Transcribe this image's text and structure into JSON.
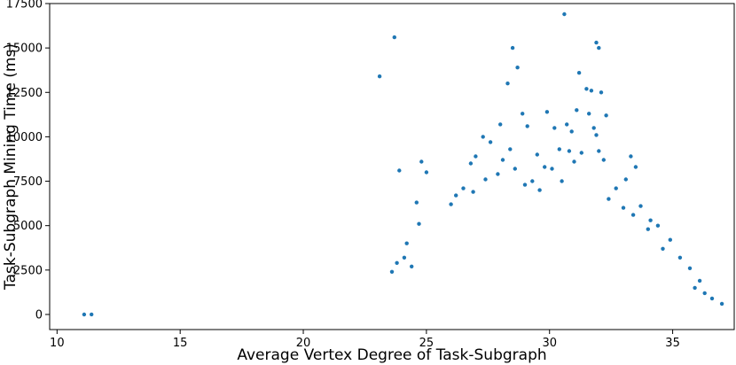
{
  "chart_data": {
    "type": "scatter",
    "title": "",
    "xlabel": "Average Vertex Degree of Task-Subgraph",
    "ylabel": "Task-Subgraph Mining Time (ms)",
    "xlim": [
      9.7,
      37.5
    ],
    "ylim": [
      -850,
      17500
    ],
    "x_ticks": [
      10,
      15,
      20,
      25,
      30,
      35
    ],
    "y_ticks": [
      0,
      2500,
      5000,
      7500,
      10000,
      12500,
      15000,
      17500
    ],
    "grid": false,
    "legend": "none",
    "point_color": "#1f77b4",
    "series": [
      {
        "name": "",
        "points": [
          [
            11.1,
            0
          ],
          [
            11.4,
            5
          ],
          [
            23.1,
            13400
          ],
          [
            23.7,
            15600
          ],
          [
            23.9,
            8100
          ],
          [
            24.8,
            8600
          ],
          [
            25.0,
            8000
          ],
          [
            24.6,
            6300
          ],
          [
            24.7,
            5100
          ],
          [
            24.2,
            4000
          ],
          [
            23.8,
            2900
          ],
          [
            23.6,
            2400
          ],
          [
            24.1,
            3200
          ],
          [
            24.4,
            2700
          ],
          [
            27.3,
            10000
          ],
          [
            27.6,
            9700
          ],
          [
            28.0,
            10700
          ],
          [
            27.0,
            8900
          ],
          [
            26.8,
            8500
          ],
          [
            26.5,
            7100
          ],
          [
            26.2,
            6700
          ],
          [
            26.0,
            6200
          ],
          [
            28.3,
            13000
          ],
          [
            28.5,
            15000
          ],
          [
            28.7,
            13900
          ],
          [
            28.9,
            11300
          ],
          [
            28.4,
            9300
          ],
          [
            28.1,
            8700
          ],
          [
            29.1,
            10600
          ],
          [
            29.5,
            9000
          ],
          [
            29.8,
            8300
          ],
          [
            29.3,
            7500
          ],
          [
            29.9,
            11400
          ],
          [
            30.2,
            10500
          ],
          [
            30.4,
            9300
          ],
          [
            30.6,
            16900
          ],
          [
            30.7,
            10700
          ],
          [
            30.9,
            10300
          ],
          [
            31.1,
            11500
          ],
          [
            31.2,
            13600
          ],
          [
            31.3,
            9100
          ],
          [
            31.5,
            12700
          ],
          [
            31.7,
            12600
          ],
          [
            31.9,
            15300
          ],
          [
            32.0,
            15000
          ],
          [
            32.1,
            12500
          ],
          [
            31.6,
            11300
          ],
          [
            31.8,
            10500
          ],
          [
            31.9,
            10100
          ],
          [
            32.3,
            11200
          ],
          [
            32.0,
            9200
          ],
          [
            32.2,
            8700
          ],
          [
            33.3,
            8900
          ],
          [
            33.5,
            8300
          ],
          [
            33.1,
            7600
          ],
          [
            32.7,
            7100
          ],
          [
            32.4,
            6500
          ],
          [
            33.0,
            6000
          ],
          [
            34.1,
            5300
          ],
          [
            34.4,
            5000
          ],
          [
            34.9,
            4200
          ],
          [
            34.0,
            4800
          ],
          [
            33.7,
            6100
          ],
          [
            33.4,
            5600
          ],
          [
            35.3,
            3200
          ],
          [
            35.7,
            2600
          ],
          [
            36.1,
            1900
          ],
          [
            36.6,
            900
          ],
          [
            37.0,
            600
          ],
          [
            36.3,
            1200
          ],
          [
            35.9,
            1500
          ],
          [
            34.6,
            3700
          ],
          [
            27.9,
            7900
          ],
          [
            27.4,
            7600
          ],
          [
            29.0,
            7300
          ],
          [
            30.1,
            8200
          ],
          [
            30.5,
            7500
          ],
          [
            31.0,
            8600
          ],
          [
            28.6,
            8200
          ],
          [
            26.9,
            6900
          ],
          [
            30.8,
            9200
          ],
          [
            29.6,
            7000
          ]
        ]
      }
    ]
  }
}
